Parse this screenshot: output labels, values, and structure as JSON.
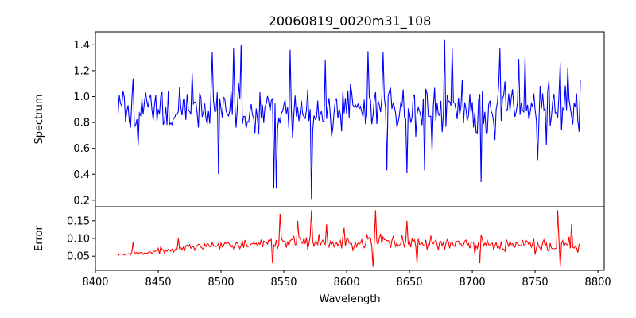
{
  "chart_data": [
    {
      "type": "line",
      "title": "20060819_0020m31_108",
      "xlabel": "",
      "ylabel": "Spectrum",
      "xlim": [
        8400,
        8805
      ],
      "ylim": [
        0.15,
        1.5
      ],
      "yticks": [
        0.2,
        0.4,
        0.6,
        0.8,
        1.0,
        1.2,
        1.4
      ],
      "ytick_labels": [
        "0.2",
        "0.4",
        "0.6",
        "0.8",
        "1.0",
        "1.2",
        "1.4"
      ],
      "series": [
        {
          "name": "spectrum",
          "color": "#0000ff",
          "x_start": 8418,
          "x_step": 1.0,
          "n": 369,
          "baseline": 0.9,
          "features": [
            {
              "x": 8430,
              "value": 1.14
            },
            {
              "x": 8434,
              "value": 0.62
            },
            {
              "x": 8477,
              "value": 1.18
            },
            {
              "x": 8493,
              "value": 1.34
            },
            {
              "x": 8498,
              "value": 0.4
            },
            {
              "x": 8510,
              "value": 1.37
            },
            {
              "x": 8516,
              "value": 1.4
            },
            {
              "x": 8542,
              "value": 0.29
            },
            {
              "x": 8544,
              "value": 0.29
            },
            {
              "x": 8555,
              "value": 1.36
            },
            {
              "x": 8572,
              "value": 0.21
            },
            {
              "x": 8583,
              "value": 1.28
            },
            {
              "x": 8617,
              "value": 1.35
            },
            {
              "x": 8629,
              "value": 1.34
            },
            {
              "x": 8632,
              "value": 0.43
            },
            {
              "x": 8648,
              "value": 0.41
            },
            {
              "x": 8662,
              "value": 0.43
            },
            {
              "x": 8668,
              "value": 0.58
            },
            {
              "x": 8678,
              "value": 1.44
            },
            {
              "x": 8684,
              "value": 1.37
            },
            {
              "x": 8707,
              "value": 0.34
            },
            {
              "x": 8722,
              "value": 1.37
            },
            {
              "x": 8737,
              "value": 1.29
            },
            {
              "x": 8742,
              "value": 1.3
            },
            {
              "x": 8752,
              "value": 0.51
            },
            {
              "x": 8770,
              "value": 1.26
            },
            {
              "x": 8776,
              "value": 1.22
            },
            {
              "x": 8786,
              "value": 1.13
            }
          ]
        }
      ]
    },
    {
      "type": "line",
      "title": "",
      "xlabel": "Wavelength",
      "ylabel": "Error",
      "xlim": [
        8400,
        8805
      ],
      "ylim": [
        0.01,
        0.19
      ],
      "xticks": [
        8400,
        8450,
        8500,
        8550,
        8600,
        8650,
        8700,
        8750,
        8800
      ],
      "xtick_labels": [
        "8400",
        "8450",
        "8500",
        "8550",
        "8600",
        "8650",
        "8700",
        "8750",
        "8800"
      ],
      "yticks": [
        0.05,
        0.1,
        0.15
      ],
      "ytick_labels": [
        "0.05",
        "0.10",
        "0.15"
      ],
      "series": [
        {
          "name": "error",
          "color": "#ff0000",
          "x_start": 8418,
          "x_step": 1.0,
          "n": 369,
          "trend": [
            [
              8418,
              0.054
            ],
            [
              8440,
              0.06
            ],
            [
              8470,
              0.072
            ],
            [
              8500,
              0.082
            ],
            [
              8550,
              0.09
            ],
            [
              8600,
              0.09
            ],
            [
              8650,
              0.088
            ],
            [
              8700,
              0.085
            ],
            [
              8750,
              0.08
            ],
            [
              8786,
              0.08
            ]
          ],
          "features": [
            {
              "x": 8430,
              "value": 0.09
            },
            {
              "x": 8466,
              "value": 0.1
            },
            {
              "x": 8541,
              "value": 0.03
            },
            {
              "x": 8547,
              "value": 0.17
            },
            {
              "x": 8561,
              "value": 0.15
            },
            {
              "x": 8572,
              "value": 0.18
            },
            {
              "x": 8584,
              "value": 0.14
            },
            {
              "x": 8598,
              "value": 0.13
            },
            {
              "x": 8621,
              "value": 0.02
            },
            {
              "x": 8623,
              "value": 0.18
            },
            {
              "x": 8648,
              "value": 0.15
            },
            {
              "x": 8656,
              "value": 0.03
            },
            {
              "x": 8706,
              "value": 0.03
            },
            {
              "x": 8768,
              "value": 0.18
            },
            {
              "x": 8770,
              "value": 0.02
            },
            {
              "x": 8779,
              "value": 0.14
            },
            {
              "x": 8784,
              "value": 0.06
            }
          ]
        }
      ]
    }
  ]
}
